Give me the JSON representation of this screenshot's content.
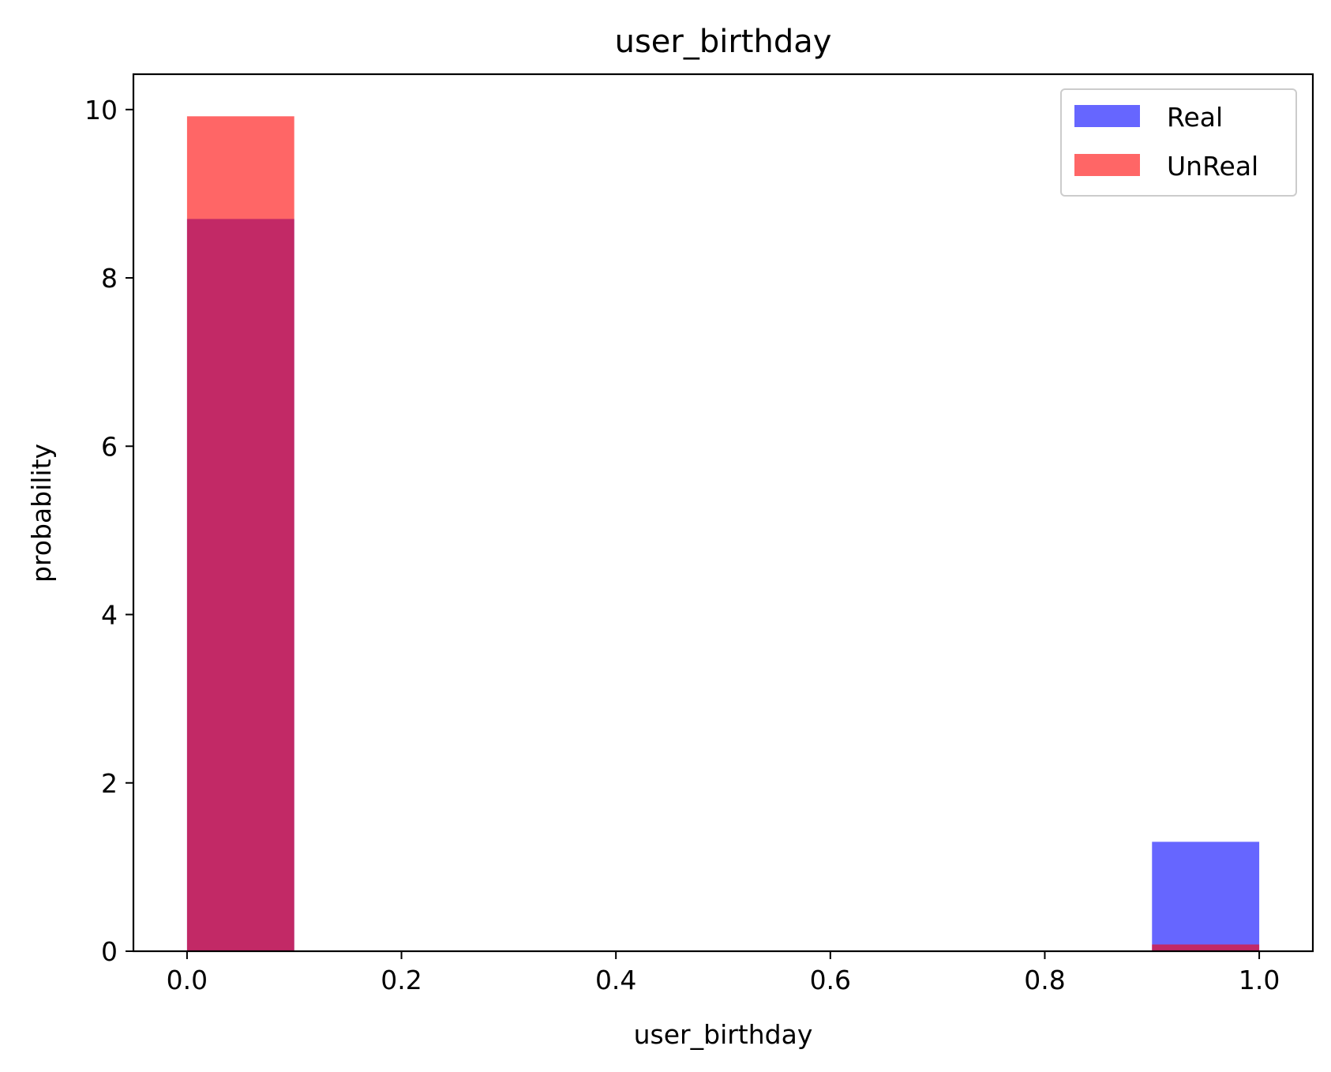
{
  "chart_data": {
    "type": "bar",
    "title": "user_birthday",
    "xlabel": "user_birthday",
    "ylabel": "probability",
    "xlim": [
      -0.05,
      1.05
    ],
    "ylim": [
      0,
      10.42
    ],
    "xticks": [
      0.0,
      0.2,
      0.4,
      0.6,
      0.8,
      1.0
    ],
    "xtick_labels": [
      "0.0",
      "0.2",
      "0.4",
      "0.6",
      "0.8",
      "1.0"
    ],
    "yticks": [
      0,
      2,
      4,
      6,
      8,
      10
    ],
    "ytick_labels": [
      "0",
      "2",
      "4",
      "6",
      "8",
      "10"
    ],
    "grid": false,
    "legend_position": "top-right",
    "bins": [
      [
        0.0,
        0.1
      ],
      [
        0.9,
        1.0
      ]
    ],
    "series": [
      {
        "name": "Real",
        "color": "#0000ff",
        "opacity": 0.6,
        "values": [
          8.7,
          1.3
        ]
      },
      {
        "name": "UnReal",
        "color": "#ff0000",
        "opacity": 0.6,
        "values": [
          9.92,
          0.08
        ]
      }
    ]
  }
}
